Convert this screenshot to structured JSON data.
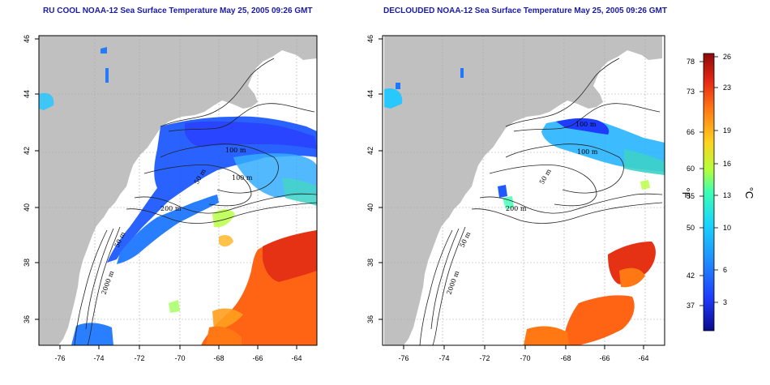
{
  "titles": {
    "left": "RU COOL NOAA-12 Sea Surface Temperature May 25, 2005 09:26 GMT",
    "right": "DECLOUDED NOAA-12 Sea Surface Temperature May 25, 2005 09:26 GMT"
  },
  "axes": {
    "lon_ticks": [
      "-76",
      "-74",
      "-72",
      "-70",
      "-68",
      "-66",
      "-64"
    ],
    "lat_ticks": [
      "46",
      "44",
      "42",
      "40",
      "38",
      "36"
    ]
  },
  "contour_labels": {
    "left": [
      "100 m",
      "100 m",
      "50 m",
      "200 m",
      "50 m",
      "2000 m"
    ],
    "right": [
      "100 m",
      "100 m",
      "50 m",
      "200 m",
      "50 m",
      "2000 m"
    ]
  },
  "colorbar": {
    "fahrenheit_ticks": [
      "78",
      "73",
      "66",
      "60",
      "55",
      "50",
      "42",
      "37"
    ],
    "celsius_ticks": [
      "26",
      "23",
      "19",
      "16",
      "13",
      "10",
      "6",
      "3"
    ],
    "unit_f": "°F",
    "unit_c": "°C",
    "colors": [
      "#0a0a8c",
      "#1e3cff",
      "#1e8cff",
      "#19d2ff",
      "#3cffb4",
      "#b4ff3c",
      "#ffd21e",
      "#ff7814",
      "#e62814",
      "#8c0a0a"
    ]
  },
  "map_colors": {
    "land": "#c0c0c0",
    "ocean": "#ffffff",
    "grid": "#aaaaaa"
  }
}
